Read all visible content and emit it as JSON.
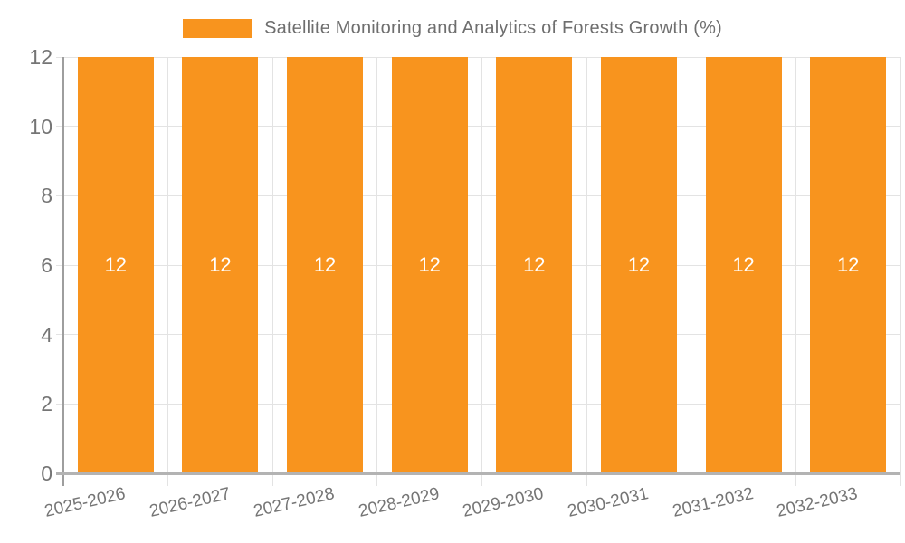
{
  "legend": {
    "position": "top",
    "items": [
      {
        "label": "Satellite Monitoring and Analytics of Forests Growth (%)",
        "swatch_color": "#F8941E"
      }
    ]
  },
  "chart_data": {
    "type": "bar",
    "title": "Satellite Monitoring and Analytics of Forests Growth (%)",
    "categories": [
      "2025-2026",
      "2026-2027",
      "2027-2028",
      "2028-2029",
      "2029-2030",
      "2030-2031",
      "2031-2032",
      "2032-2033"
    ],
    "series": [
      {
        "name": "Satellite Monitoring and Analytics of Forests Growth (%)",
        "values": [
          12,
          12,
          12,
          12,
          12,
          12,
          12,
          12
        ]
      }
    ],
    "bar_labels": [
      "12",
      "12",
      "12",
      "12",
      "12",
      "12",
      "12",
      "12"
    ],
    "xlabel": "",
    "ylabel": "",
    "ylim": [
      0,
      12
    ],
    "yticks": [
      0,
      2,
      4,
      6,
      8,
      10,
      12
    ],
    "grid": true,
    "legend_position": "top",
    "bar_color": "#F8941E",
    "bar_label_color": "#FFFFFF"
  },
  "colors": {
    "background": "#FFFFFF",
    "bar": "#F8941E",
    "gridline": "#E3E3E3",
    "axis_y_line": "#9E9E9E",
    "axis_baseline": "#B3B3B3",
    "tick_text": "#757575",
    "legend_text": "#6E6E6E"
  }
}
